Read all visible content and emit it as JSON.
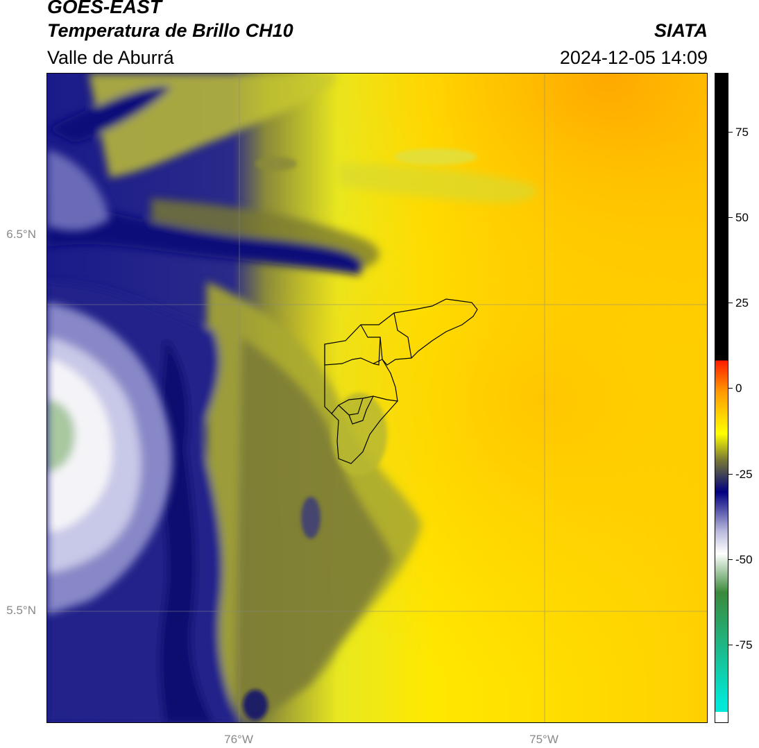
{
  "header": {
    "satellite": "GOES-EAST",
    "product": "Temperatura de Brillo CH10",
    "region": "Valle de Aburrá",
    "institution": "SIATA",
    "datetime": "2024-12-05 14:09"
  },
  "map": {
    "lat_labels": [
      "6.5°N",
      "5.5°N"
    ],
    "lon_labels": [
      "76°W",
      "75°W"
    ]
  },
  "colorbar": {
    "ticks": [
      "75",
      "50",
      "25",
      "0",
      "-25",
      "-50",
      "-75"
    ],
    "colors": {
      "black": "#000000",
      "red": "#ff1a00",
      "orange": "#ff9900",
      "yellow": "#ffff00",
      "olive": "#7a7a33",
      "navy": "#000080",
      "lavender": "#b8b8dd",
      "white": "#ffffff",
      "green": "#3a8a3a",
      "cyan": "#00e8d8"
    }
  }
}
